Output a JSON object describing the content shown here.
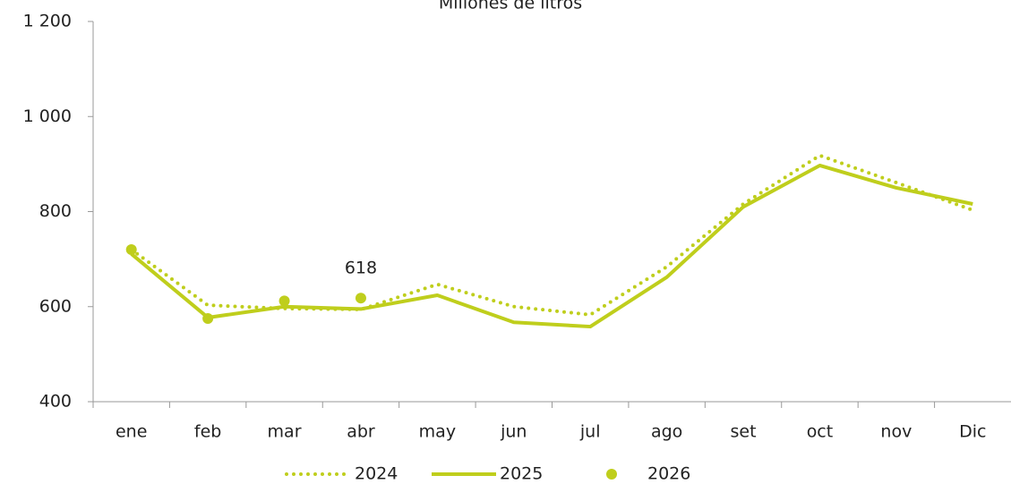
{
  "chart_data": {
    "type": "line",
    "title": "Millones de litros",
    "categories": [
      "ene",
      "feb",
      "mar",
      "abr",
      "may",
      "jun",
      "jul",
      "ago",
      "set",
      "oct",
      "nov",
      "Dic"
    ],
    "series": [
      {
        "name": "2024",
        "color": "#bfce1c",
        "style": "dotted",
        "values": [
          720,
          603,
          596,
          594,
          647,
          600,
          583,
          684,
          816,
          918,
          861,
          803
        ]
      },
      {
        "name": "2025",
        "color": "#bfce1c",
        "style": "solid",
        "values": [
          711,
          577,
          600,
          595,
          624,
          567,
          558,
          662,
          810,
          897,
          850,
          816
        ]
      },
      {
        "name": "2026",
        "color": "#bfce1c",
        "style": "markers",
        "values": [
          720,
          575,
          612,
          618,
          null,
          null,
          null,
          null,
          null,
          null,
          null,
          null
        ],
        "value_labels": [
          null,
          null,
          null,
          "618",
          null,
          null,
          null,
          null,
          null,
          null,
          null,
          null
        ]
      }
    ],
    "ylim": [
      400,
      1200
    ],
    "yticks": [
      400,
      600,
      800,
      {
        "value": 1000,
        "label": "1 000"
      },
      {
        "value": 1200,
        "label": "1 200"
      }
    ],
    "grid": false,
    "legend": "bottom"
  }
}
